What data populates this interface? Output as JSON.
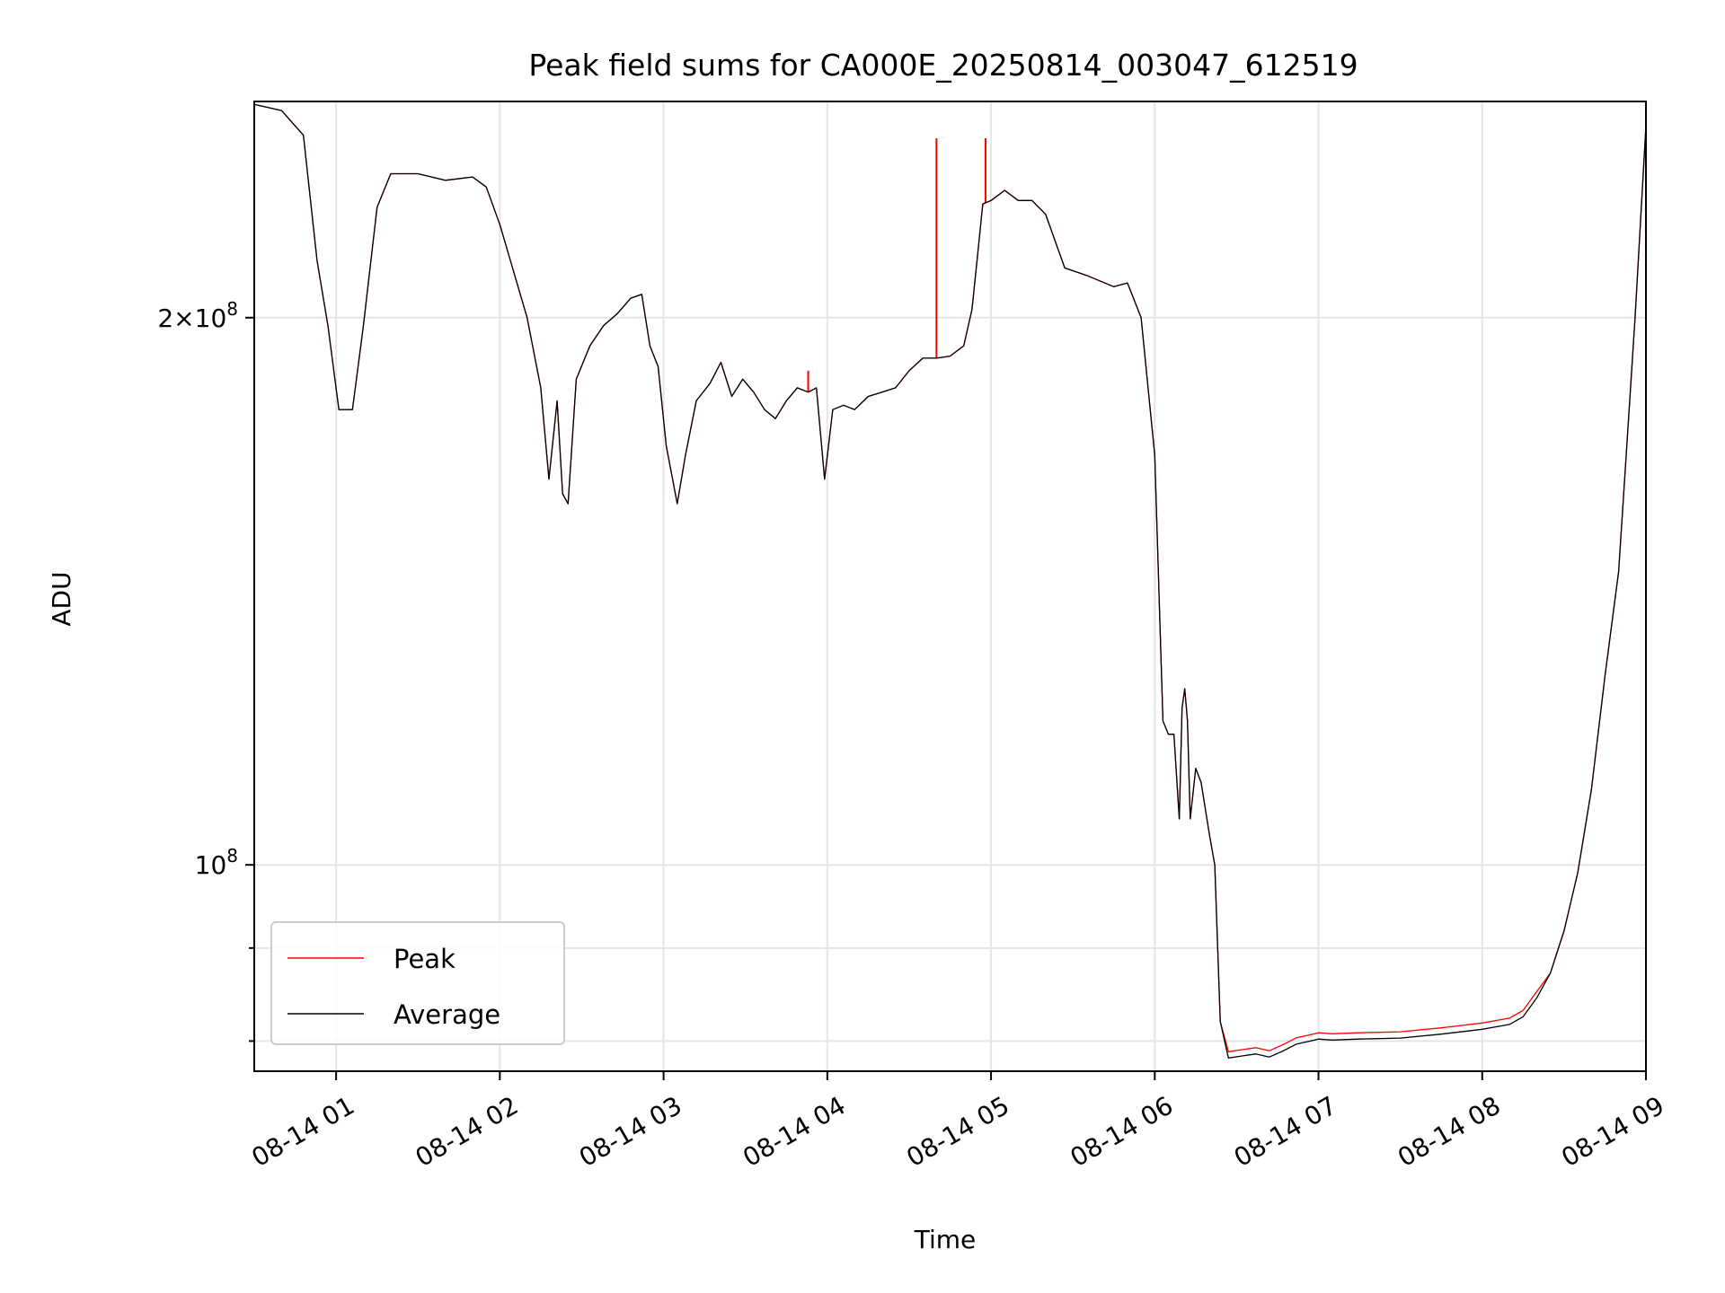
{
  "chart_data": {
    "type": "line",
    "title": "Peak field sums for CA000E_20250814_003047_612519",
    "xlabel": "Time",
    "ylabel": "ADU",
    "y_scale": "log",
    "grid": true,
    "legend_position": "lower-left",
    "xlim": [
      "08-14 00:30",
      "08-14 09:00"
    ],
    "ylim": [
      77000000,
      263000000
    ],
    "x_ticks": [
      {
        "value": "08-14 01:00",
        "label": "08-14 01"
      },
      {
        "value": "08-14 02:00",
        "label": "08-14 02"
      },
      {
        "value": "08-14 03:00",
        "label": "08-14 03"
      },
      {
        "value": "08-14 04:00",
        "label": "08-14 04"
      },
      {
        "value": "08-14 05:00",
        "label": "08-14 05"
      },
      {
        "value": "08-14 06:00",
        "label": "08-14 06"
      },
      {
        "value": "08-14 07:00",
        "label": "08-14 07"
      },
      {
        "value": "08-14 08:00",
        "label": "08-14 08"
      },
      {
        "value": "08-14 09:00",
        "label": "08-14 09"
      }
    ],
    "y_ticks_major": [
      {
        "value": 100000000,
        "base": "10",
        "exp": "8",
        "coef": ""
      },
      {
        "value": 200000000,
        "base": "10",
        "exp": "8",
        "coef": "2×"
      }
    ],
    "y_gridlines_minor": [
      80000000,
      90000000
    ],
    "series": [
      {
        "name": "Peak",
        "color": "#ff0000",
        "spikes": [
          {
            "time": "08-14 04:40",
            "value": 251000000
          },
          {
            "time": "08-14 04:58",
            "value": 251000000
          },
          {
            "time": "08-14 03:53",
            "value": 187000000
          }
        ]
      },
      {
        "name": "Average",
        "color": "#000000",
        "points": [
          [
            "08-14 00:30",
            262000000
          ],
          [
            "08-14 00:40",
            260000000
          ],
          [
            "08-14 00:48",
            252000000
          ],
          [
            "08-14 00:53",
            215000000
          ],
          [
            "08-14 00:57",
            198000000
          ],
          [
            "08-14 01:01",
            178000000
          ],
          [
            "08-14 01:06",
            178000000
          ],
          [
            "08-14 01:10",
            198000000
          ],
          [
            "08-14 01:15",
            230000000
          ],
          [
            "08-14 01:20",
            240000000
          ],
          [
            "08-14 01:30",
            240000000
          ],
          [
            "08-14 01:40",
            238000000
          ],
          [
            "08-14 01:50",
            239000000
          ],
          [
            "08-14 01:55",
            236000000
          ],
          [
            "08-14 02:00",
            225000000
          ],
          [
            "08-14 02:10",
            200000000
          ],
          [
            "08-14 02:15",
            183000000
          ],
          [
            "08-14 02:18",
            163000000
          ],
          [
            "08-14 02:21",
            180000000
          ],
          [
            "08-14 02:23",
            160000000
          ],
          [
            "08-14 02:25",
            158000000
          ],
          [
            "08-14 02:28",
            185000000
          ],
          [
            "08-14 02:33",
            193000000
          ],
          [
            "08-14 02:38",
            198000000
          ],
          [
            "08-14 02:43",
            201000000
          ],
          [
            "08-14 02:48",
            205000000
          ],
          [
            "08-14 02:52",
            206000000
          ],
          [
            "08-14 02:55",
            193000000
          ],
          [
            "08-14 02:58",
            188000000
          ],
          [
            "08-14 03:01",
            170000000
          ],
          [
            "08-14 03:05",
            158000000
          ],
          [
            "08-14 03:08",
            168000000
          ],
          [
            "08-14 03:12",
            180000000
          ],
          [
            "08-14 03:17",
            184000000
          ],
          [
            "08-14 03:21",
            189000000
          ],
          [
            "08-14 03:25",
            181000000
          ],
          [
            "08-14 03:29",
            185000000
          ],
          [
            "08-14 03:33",
            182000000
          ],
          [
            "08-14 03:37",
            178000000
          ],
          [
            "08-14 03:41",
            176000000
          ],
          [
            "08-14 03:45",
            180000000
          ],
          [
            "08-14 03:49",
            183000000
          ],
          [
            "08-14 03:53",
            182000000
          ],
          [
            "08-14 03:56",
            183000000
          ],
          [
            "08-14 03:59",
            163000000
          ],
          [
            "08-14 04:02",
            178000000
          ],
          [
            "08-14 04:06",
            179000000
          ],
          [
            "08-14 04:10",
            178000000
          ],
          [
            "08-14 04:15",
            181000000
          ],
          [
            "08-14 04:20",
            182000000
          ],
          [
            "08-14 04:25",
            183000000
          ],
          [
            "08-14 04:30",
            187000000
          ],
          [
            "08-14 04:35",
            190000000
          ],
          [
            "08-14 04:40",
            190000000
          ],
          [
            "08-14 04:45",
            190500000
          ],
          [
            "08-14 04:50",
            193000000
          ],
          [
            "08-14 04:53",
            202000000
          ],
          [
            "08-14 04:55",
            216000000
          ],
          [
            "08-14 04:57",
            231000000
          ],
          [
            "08-14 05:00",
            232000000
          ],
          [
            "08-14 05:05",
            235000000
          ],
          [
            "08-14 05:10",
            232000000
          ],
          [
            "08-14 05:15",
            232000000
          ],
          [
            "08-14 05:20",
            228000000
          ],
          [
            "08-14 05:27",
            213000000
          ],
          [
            "08-14 05:35",
            211000000
          ],
          [
            "08-14 05:45",
            208000000
          ],
          [
            "08-14 05:50",
            209000000
          ],
          [
            "08-14 05:55",
            200000000
          ],
          [
            "08-14 06:00",
            168000000
          ],
          [
            "08-14 06:03",
            120000000
          ],
          [
            "08-14 06:05",
            118000000
          ],
          [
            "08-14 06:07",
            118000000
          ],
          [
            "08-14 06:09",
            106000000
          ],
          [
            "08-14 06:10",
            122000000
          ],
          [
            "08-14 06:11",
            125000000
          ],
          [
            "08-14 06:12",
            120000000
          ],
          [
            "08-14 06:13",
            106000000
          ],
          [
            "08-14 06:15",
            113000000
          ],
          [
            "08-14 06:17",
            111000000
          ],
          [
            "08-14 06:20",
            104000000
          ],
          [
            "08-14 06:22",
            100000000
          ],
          [
            "08-14 06:24",
            82000000
          ],
          [
            "08-14 06:27",
            78300000
          ],
          [
            "08-14 06:32",
            78500000
          ],
          [
            "08-14 06:37",
            78700000
          ],
          [
            "08-14 06:42",
            78400000
          ],
          [
            "08-14 06:47",
            79000000
          ],
          [
            "08-14 06:52",
            79700000
          ],
          [
            "08-14 06:57",
            80000000
          ],
          [
            "08-14 07:00",
            80200000
          ],
          [
            "08-14 07:05",
            80100000
          ],
          [
            "08-14 07:15",
            80200000
          ],
          [
            "08-14 07:30",
            80300000
          ],
          [
            "08-14 07:45",
            80700000
          ],
          [
            "08-14 08:00",
            81200000
          ],
          [
            "08-14 08:10",
            81700000
          ],
          [
            "08-14 08:15",
            82500000
          ],
          [
            "08-14 08:20",
            84500000
          ],
          [
            "08-14 08:25",
            87200000
          ],
          [
            "08-14 08:30",
            92000000
          ],
          [
            "08-14 08:35",
            99000000
          ],
          [
            "08-14 08:40",
            110000000
          ],
          [
            "08-14 08:45",
            127000000
          ],
          [
            "08-14 08:50",
            145000000
          ],
          [
            "08-14 08:53",
            170000000
          ],
          [
            "08-14 08:56",
            200000000
          ],
          [
            "08-14 09:00",
            255000000
          ]
        ]
      }
    ]
  }
}
